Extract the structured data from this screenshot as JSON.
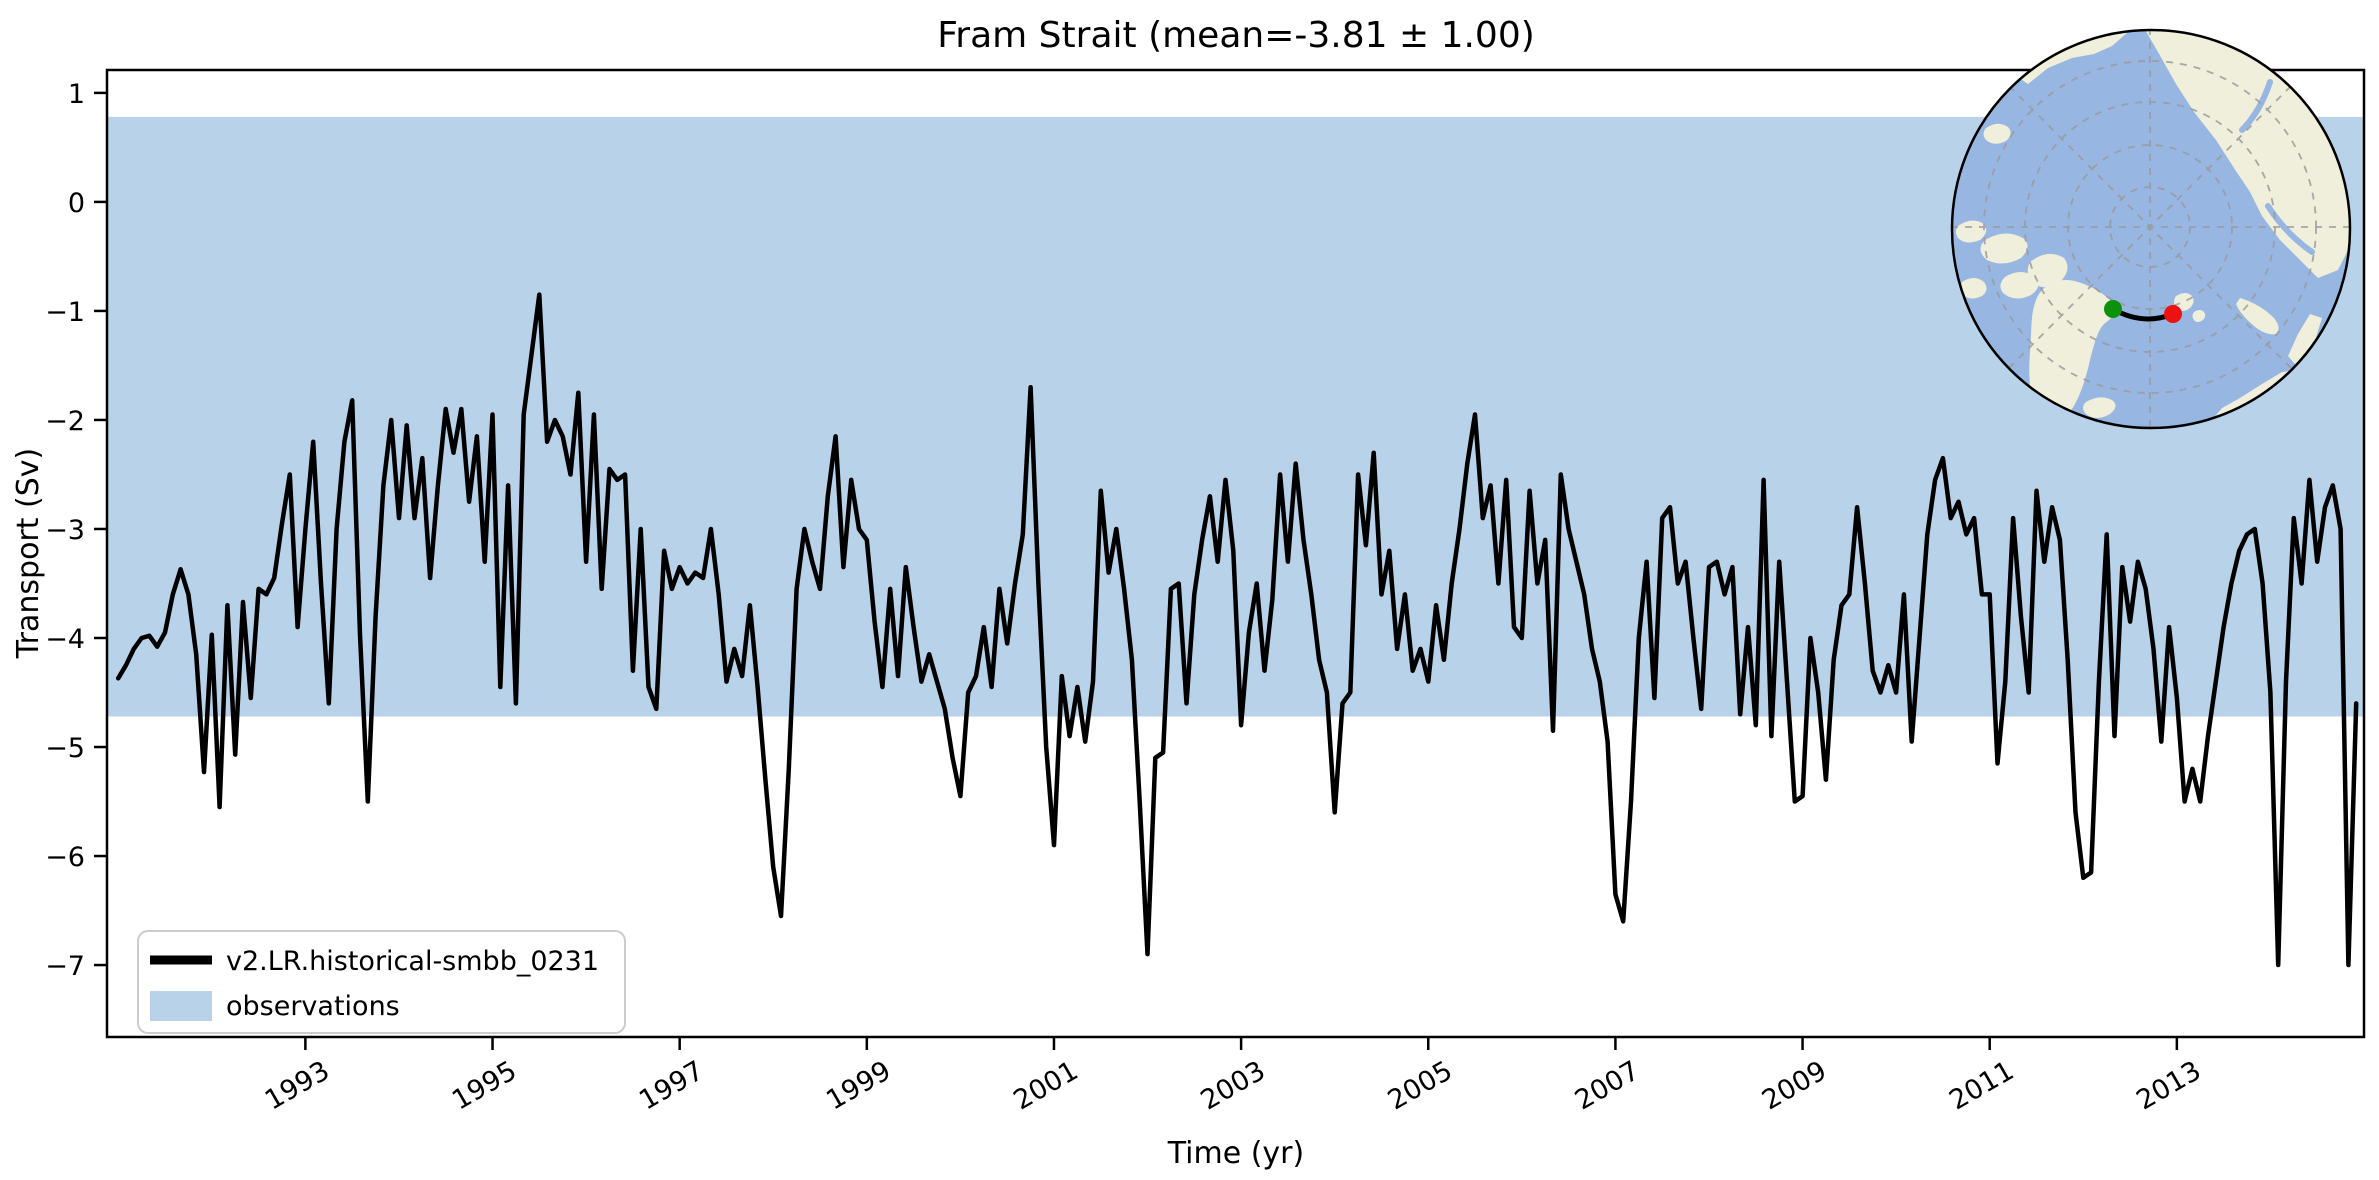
{
  "title": "Fram Strait (mean=-3.81 ± 1.00)",
  "axes": {
    "xlabel": "Time (yr)",
    "ylabel": "Transport (Sv)"
  },
  "legend": {
    "items": [
      {
        "label": "v2.LR.historical-smbb_0231",
        "swatch": "line"
      },
      {
        "label": "observations",
        "swatch": "patch"
      }
    ]
  },
  "colors": {
    "series": "#000000",
    "band": "#b8d2e9",
    "map_ocean": "#97b6e1",
    "map_land": "#efefdb",
    "map_graticule": "#9a9a9a",
    "transect_start": "#0a930a",
    "transect_end": "#ee1111",
    "legend_border": "#cccccc"
  },
  "inset_map": {
    "transect_start_point": "green-dot-greenland-coast",
    "transect_end_point": "red-dot-svalbard",
    "transect_line": "black-arc-across-fram-strait"
  },
  "chart_data": {
    "type": "line",
    "title": "Fram Strait (mean=-3.81 ± 1.00)",
    "xlabel": "Time (yr)",
    "ylabel": "Transport (Sv)",
    "grid": false,
    "legend_position": "lower left",
    "xlim": [
      1990.88,
      2015.0
    ],
    "ylim": [
      -7.66,
      1.21
    ],
    "x_ticks": [
      1993,
      1995,
      1997,
      1999,
      2001,
      2003,
      2005,
      2007,
      2009,
      2011,
      2013
    ],
    "x_tick_labels": [
      "1993",
      "1995",
      "1997",
      "1999",
      "2001",
      "2003",
      "2005",
      "2007",
      "2009",
      "2011",
      "2013"
    ],
    "y_ticks": [
      1,
      0,
      -1,
      -2,
      -3,
      -4,
      -5,
      -6,
      -7
    ],
    "y_tick_labels": [
      "1",
      "0",
      "−1",
      "−2",
      "−3",
      "−4",
      "−5",
      "−6",
      "−7"
    ],
    "band": {
      "label": "observations",
      "top": 0.78,
      "bottom": -4.72
    },
    "x_start": 1991.0,
    "x_step": 0.0833333,
    "series": [
      {
        "name": "v2.LR.historical-smbb_0231",
        "color": "#000000",
        "values": [
          -4.37,
          -4.25,
          -4.1,
          -4.0,
          -3.98,
          -4.08,
          -3.95,
          -3.6,
          -3.37,
          -3.6,
          -4.15,
          -5.23,
          -3.97,
          -5.55,
          -3.7,
          -5.07,
          -3.67,
          -4.55,
          -3.55,
          -3.6,
          -3.45,
          -2.95,
          -2.5,
          -3.9,
          -3.0,
          -2.2,
          -3.5,
          -4.6,
          -3.0,
          -2.2,
          -1.82,
          -3.97,
          -5.5,
          -3.8,
          -2.6,
          -2.0,
          -2.9,
          -2.05,
          -2.9,
          -2.35,
          -3.45,
          -2.6,
          -1.9,
          -2.3,
          -1.9,
          -2.75,
          -2.15,
          -3.3,
          -1.95,
          -4.45,
          -2.6,
          -4.6,
          -1.95,
          -1.4,
          -0.85,
          -2.2,
          -2.0,
          -2.15,
          -2.5,
          -1.75,
          -3.3,
          -1.95,
          -3.55,
          -2.45,
          -2.55,
          -2.5,
          -4.3,
          -3.0,
          -4.45,
          -4.65,
          -3.2,
          -3.55,
          -3.35,
          -3.5,
          -3.4,
          -3.45,
          -3.0,
          -3.6,
          -4.4,
          -4.1,
          -4.35,
          -3.7,
          -4.45,
          -5.3,
          -6.1,
          -6.55,
          -5.2,
          -3.55,
          -3.0,
          -3.3,
          -3.55,
          -2.7,
          -2.15,
          -3.35,
          -2.55,
          -3.0,
          -3.1,
          -3.85,
          -4.45,
          -3.55,
          -4.35,
          -3.35,
          -3.9,
          -4.4,
          -4.15,
          -4.4,
          -4.65,
          -5.1,
          -5.45,
          -4.5,
          -4.35,
          -3.9,
          -4.45,
          -3.55,
          -4.05,
          -3.5,
          -3.05,
          -1.7,
          -3.5,
          -5.0,
          -5.9,
          -4.35,
          -4.9,
          -4.45,
          -4.95,
          -4.4,
          -2.65,
          -3.4,
          -3.0,
          -3.55,
          -4.2,
          -5.5,
          -6.9,
          -5.1,
          -5.05,
          -3.55,
          -3.5,
          -4.6,
          -3.6,
          -3.1,
          -2.7,
          -3.3,
          -2.55,
          -3.2,
          -4.8,
          -3.95,
          -3.5,
          -4.3,
          -3.65,
          -2.5,
          -3.3,
          -2.4,
          -3.1,
          -3.6,
          -4.2,
          -4.5,
          -5.6,
          -4.6,
          -4.5,
          -2.5,
          -3.15,
          -2.3,
          -3.6,
          -3.2,
          -4.1,
          -3.6,
          -4.3,
          -4.1,
          -4.4,
          -3.7,
          -4.2,
          -3.5,
          -3.0,
          -2.4,
          -1.95,
          -2.9,
          -2.6,
          -3.5,
          -2.55,
          -3.9,
          -4.0,
          -2.65,
          -3.5,
          -3.1,
          -4.85,
          -2.5,
          -3.0,
          -3.3,
          -3.6,
          -4.1,
          -4.4,
          -4.95,
          -6.35,
          -6.6,
          -5.5,
          -4.0,
          -3.3,
          -4.55,
          -2.9,
          -2.8,
          -3.5,
          -3.3,
          -4.0,
          -4.65,
          -3.35,
          -3.3,
          -3.6,
          -3.35,
          -4.7,
          -3.9,
          -4.8,
          -2.55,
          -4.9,
          -3.3,
          -4.4,
          -5.5,
          -5.45,
          -4.0,
          -4.5,
          -5.3,
          -4.2,
          -3.7,
          -3.6,
          -2.8,
          -3.5,
          -4.3,
          -4.5,
          -4.25,
          -4.5,
          -3.6,
          -4.95,
          -4.0,
          -3.05,
          -2.55,
          -2.35,
          -2.9,
          -2.75,
          -3.05,
          -2.9,
          -3.6,
          -3.6,
          -5.15,
          -4.4,
          -2.9,
          -3.8,
          -4.5,
          -2.65,
          -3.3,
          -2.8,
          -3.1,
          -4.2,
          -5.6,
          -6.2,
          -6.15,
          -4.4,
          -3.05,
          -4.9,
          -3.35,
          -3.85,
          -3.3,
          -3.55,
          -4.1,
          -4.95,
          -3.9,
          -4.55,
          -5.5,
          -5.2,
          -5.5,
          -4.9,
          -4.4,
          -3.9,
          -3.5,
          -3.2,
          -3.05,
          -3.0,
          -3.5,
          -4.5,
          -7.0,
          -4.4,
          -2.9,
          -3.5,
          -2.55,
          -3.3,
          -2.8,
          -2.6,
          -3.0,
          -7.0,
          -4.6
        ]
      }
    ]
  }
}
